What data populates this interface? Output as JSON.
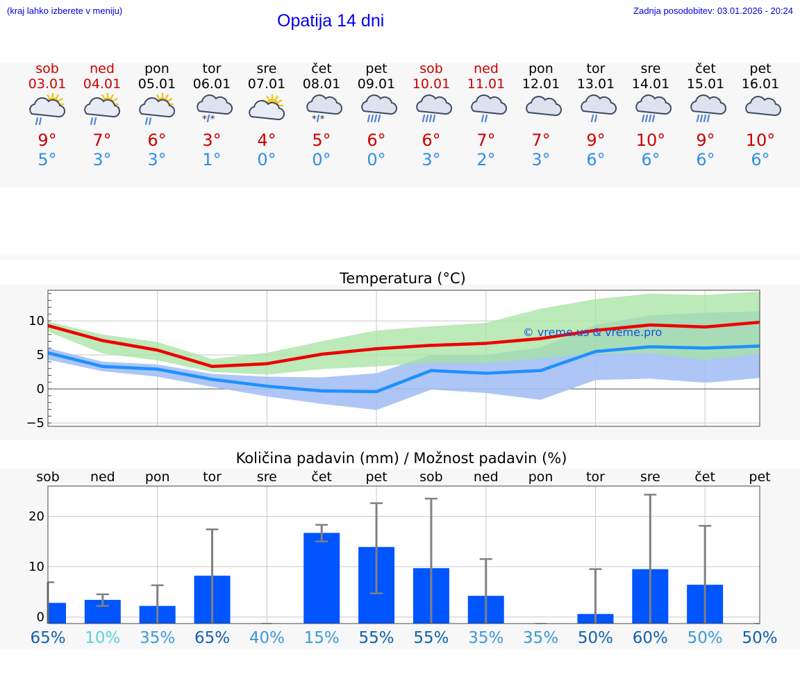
{
  "header": {
    "hint": "(kraj lahko izberete v meniju)",
    "title": "Opatija 14 dni",
    "updated": "Zadnja posodobitev: 03.01.2026 - 20:24"
  },
  "days": [
    {
      "name": "sob",
      "date": "03.01",
      "weekend": true,
      "icon": "sun-cloud-rain-icon",
      "max": "9°",
      "min": "5°"
    },
    {
      "name": "ned",
      "date": "04.01",
      "weekend": true,
      "icon": "sun-cloud-rain-icon",
      "max": "7°",
      "min": "3°"
    },
    {
      "name": "pon",
      "date": "05.01",
      "weekend": false,
      "icon": "sun-cloud-rain-icon",
      "max": "6°",
      "min": "3°"
    },
    {
      "name": "tor",
      "date": "06.01",
      "weekend": false,
      "icon": "cloud-sleet-icon",
      "max": "3°",
      "min": "1°"
    },
    {
      "name": "sre",
      "date": "07.01",
      "weekend": false,
      "icon": "sun-cloud-icon",
      "max": "4°",
      "min": "0°"
    },
    {
      "name": "čet",
      "date": "08.01",
      "weekend": false,
      "icon": "cloud-sleet-icon",
      "max": "5°",
      "min": "0°"
    },
    {
      "name": "pet",
      "date": "09.01",
      "weekend": false,
      "icon": "cloud-heavy-rain-icon",
      "max": "6°",
      "min": "0°"
    },
    {
      "name": "sob",
      "date": "10.01",
      "weekend": true,
      "icon": "cloud-heavy-rain-icon",
      "max": "6°",
      "min": "3°"
    },
    {
      "name": "ned",
      "date": "11.01",
      "weekend": true,
      "icon": "cloud-rain-icon",
      "max": "7°",
      "min": "2°"
    },
    {
      "name": "pon",
      "date": "12.01",
      "weekend": false,
      "icon": "cloud-icon",
      "max": "7°",
      "min": "3°"
    },
    {
      "name": "tor",
      "date": "13.01",
      "weekend": false,
      "icon": "cloud-rain-icon",
      "max": "9°",
      "min": "6°"
    },
    {
      "name": "sre",
      "date": "14.01",
      "weekend": false,
      "icon": "cloud-heavy-rain-icon",
      "max": "10°",
      "min": "6°"
    },
    {
      "name": "čet",
      "date": "15.01",
      "weekend": false,
      "icon": "cloud-heavy-rain-icon",
      "max": "9°",
      "min": "6°"
    },
    {
      "name": "pet",
      "date": "16.01",
      "weekend": false,
      "icon": "cloud-icon",
      "max": "10°",
      "min": "6°"
    }
  ],
  "colors": {
    "max_line": "#ee0000",
    "min_line": "#1e90ff",
    "max_band": "#a6e3a1",
    "min_band": "#a4c0f4",
    "bar": "#0055ff",
    "err": "#808080",
    "pct_high": "#1060b0",
    "pct_mid": "#3a9ad8",
    "pct_low": "#60d0e0"
  },
  "chart_data": [
    {
      "type": "line",
      "title": "Temperatura (°C)",
      "ylim": [
        -5.5,
        14.5
      ],
      "yticks": [
        10,
        5,
        0,
        -5
      ],
      "watermark": "© vreme.us & vreme.pro",
      "series": [
        {
          "name": "max",
          "values": [
            9.3,
            7.1,
            5.7,
            3.3,
            3.7,
            5.1,
            5.9,
            6.4,
            6.7,
            7.4,
            8.6,
            9.4,
            9.1,
            9.8
          ],
          "band_low": [
            8.4,
            5.2,
            4.2,
            2.5,
            2.1,
            2.9,
            3.3,
            3.8,
            3.8,
            4.5,
            5.2,
            5.2,
            4.3,
            5.1
          ],
          "band_high": [
            9.9,
            8.0,
            6.9,
            4.4,
            5.3,
            7.0,
            8.6,
            9.2,
            9.7,
            11.8,
            13.2,
            14.0,
            13.8,
            14.3
          ]
        },
        {
          "name": "min",
          "values": [
            5.3,
            3.3,
            2.9,
            1.4,
            0.4,
            -0.3,
            -0.4,
            2.7,
            2.3,
            2.7,
            5.5,
            6.2,
            6.0,
            6.3
          ],
          "band_low": [
            4.3,
            2.6,
            1.8,
            0.3,
            -1.1,
            -2.2,
            -3.1,
            -0.1,
            -0.6,
            -1.6,
            1.3,
            1.5,
            0.9,
            1.6
          ],
          "band_high": [
            6.0,
            4.0,
            3.6,
            2.2,
            1.8,
            1.7,
            2.3,
            5.0,
            5.0,
            6.1,
            9.4,
            10.8,
            11.2,
            11.4
          ]
        }
      ]
    },
    {
      "type": "bar",
      "title": "Količina padavin (mm) / Možnost padavin (%)",
      "ylim": [
        -1.3,
        26
      ],
      "yticks": [
        20,
        10,
        0
      ],
      "categories": [
        "sob",
        "ned",
        "pon",
        "tor",
        "sre",
        "čet",
        "pet",
        "sob",
        "ned",
        "pon",
        "tor",
        "sre",
        "čet",
        "pet"
      ],
      "values": [
        2.8,
        3.4,
        2.2,
        8.2,
        0,
        16.7,
        13.9,
        9.7,
        4.2,
        0,
        0.6,
        9.5,
        6.4,
        0
      ],
      "err_low": [
        0,
        2.2,
        0,
        0,
        0,
        15,
        4.7,
        0,
        0,
        0,
        0,
        0,
        0,
        0
      ],
      "err_high": [
        6.9,
        4.5,
        6.3,
        17.4,
        0,
        18.3,
        22.6,
        23.5,
        11.5,
        0,
        9.5,
        24.3,
        18.1,
        0
      ],
      "probability": [
        "65%",
        "10%",
        "35%",
        "65%",
        "40%",
        "15%",
        "55%",
        "55%",
        "35%",
        "35%",
        "50%",
        "60%",
        "50%",
        "50%"
      ],
      "prob_level": [
        "high",
        "low",
        "mid",
        "high",
        "mid",
        "mid",
        "high",
        "high",
        "mid",
        "mid",
        "high",
        "high",
        "mid",
        "high"
      ]
    }
  ]
}
